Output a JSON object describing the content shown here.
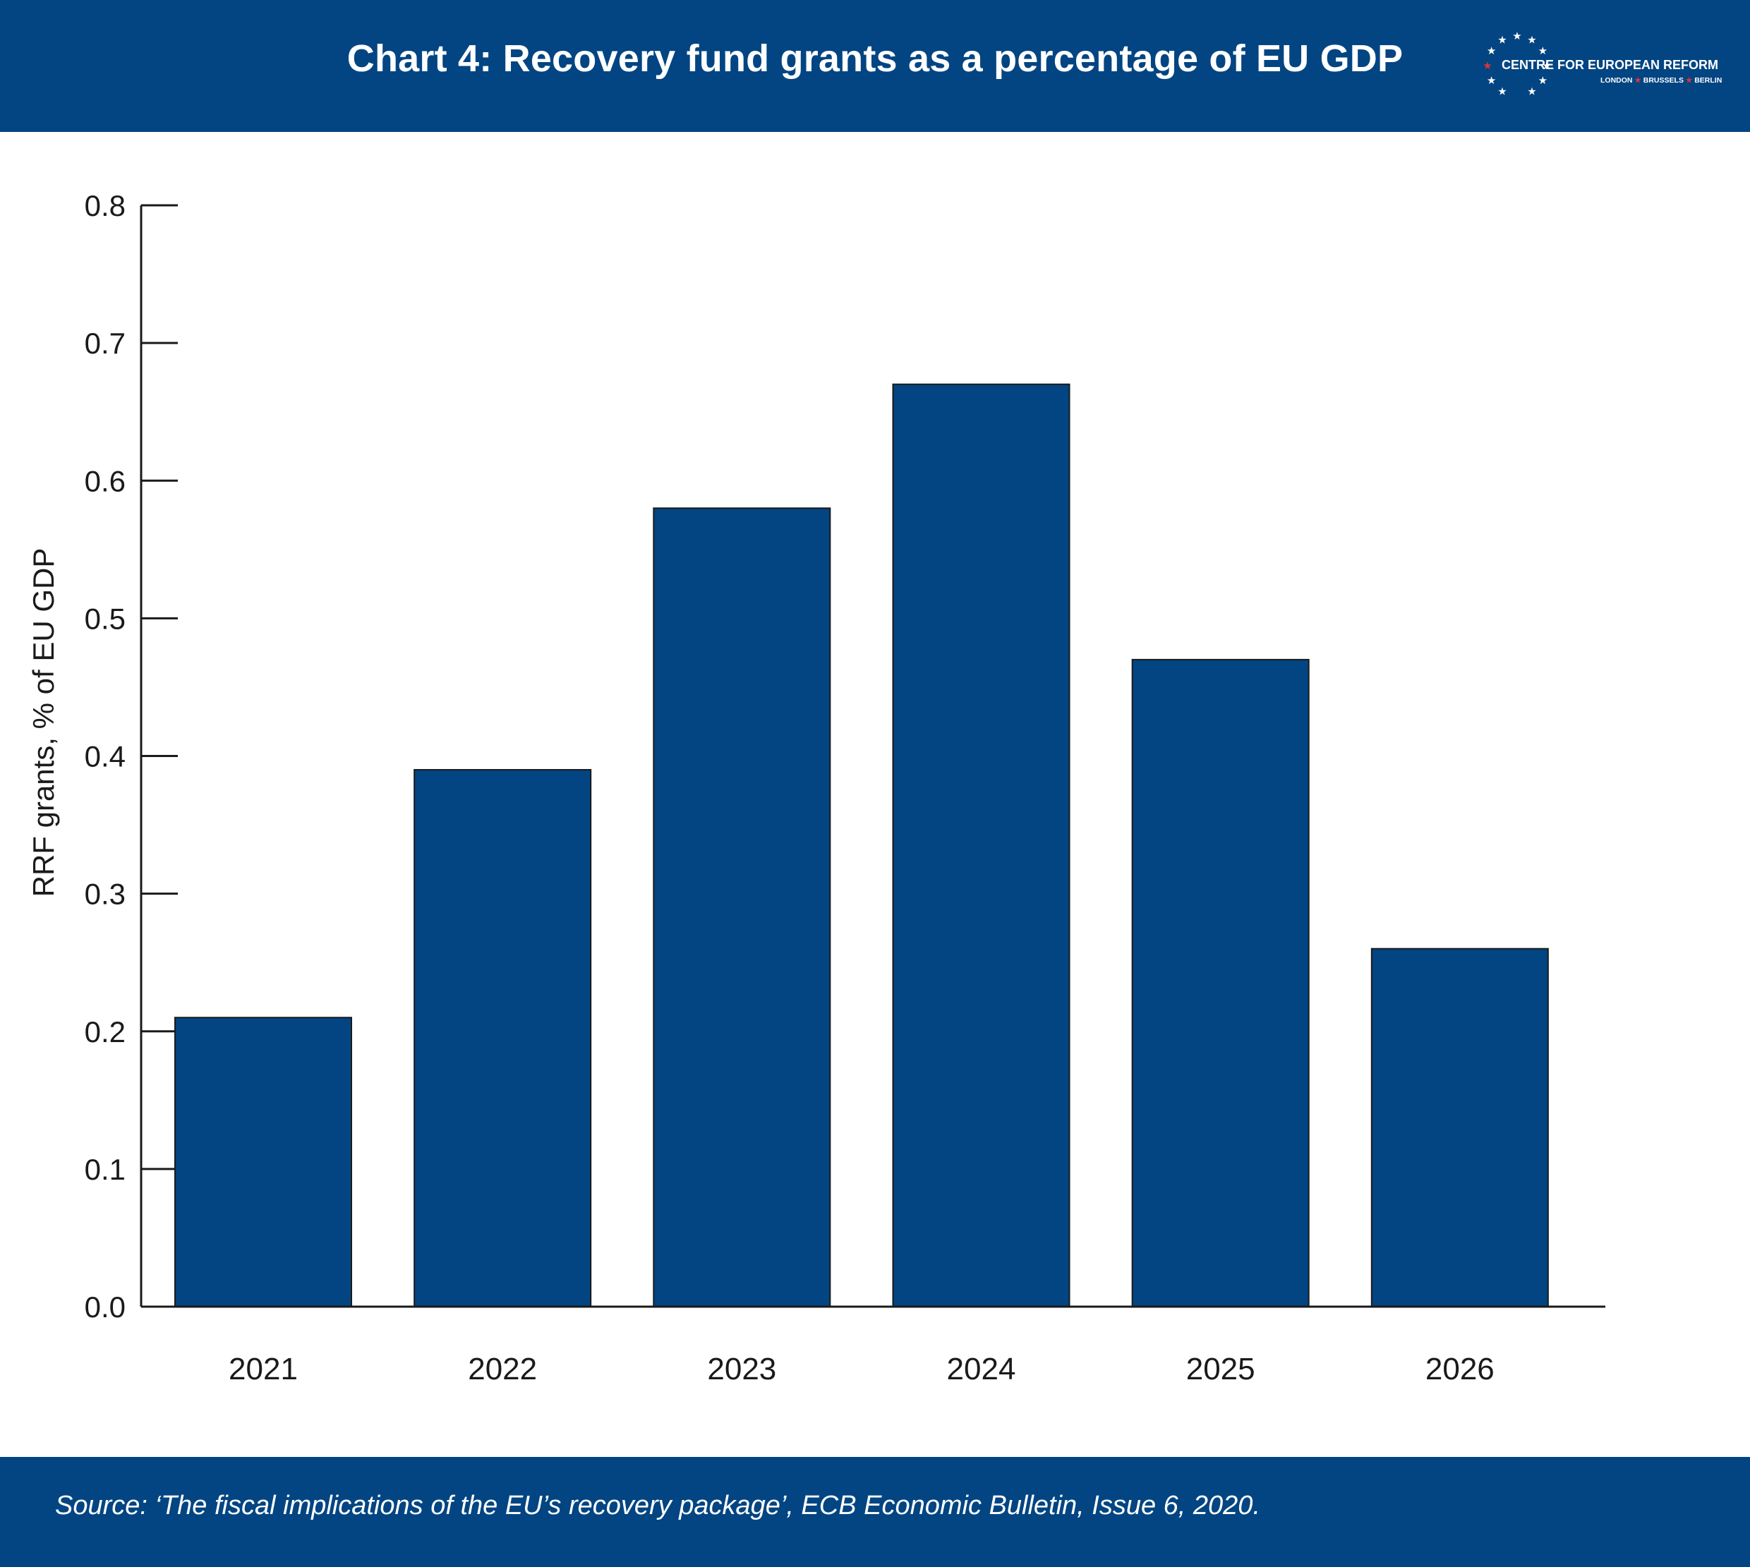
{
  "header": {
    "title": "Chart 4: Recovery fund grants as a percentage of EU GDP",
    "background": "#024582"
  },
  "logo": {
    "name": "CENTRE FOR EUROPEAN REFORM",
    "city_1": "LONDON",
    "city_2": "BRUSSELS",
    "city_3": "BERLIN",
    "star_color": "#ffffff",
    "accent_star_color": "#e0343a"
  },
  "footer": {
    "source": "Source: ‘The fiscal implications of the EU’s recovery package’, ECB Economic Bulletin, Issue 6, 2020."
  },
  "chart_data": {
    "type": "bar",
    "title": "Chart 4: Recovery fund grants as a percentage of EU GDP",
    "xlabel": "",
    "ylabel": "RRF grants, % of EU GDP",
    "categories": [
      "2021",
      "2022",
      "2023",
      "2024",
      "2025",
      "2026"
    ],
    "values": [
      0.21,
      0.39,
      0.58,
      0.67,
      0.47,
      0.26
    ],
    "ylim": [
      0.0,
      0.8
    ],
    "yticks": [
      "0.0",
      "0.1",
      "0.2",
      "0.3",
      "0.4",
      "0.5",
      "0.6",
      "0.7",
      "0.8"
    ],
    "bar_color": "#024582",
    "grid": false,
    "legend": "none"
  }
}
